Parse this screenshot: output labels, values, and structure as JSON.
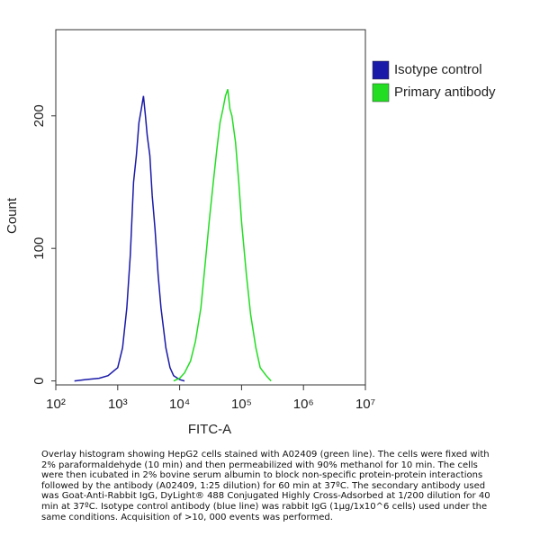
{
  "chart_data": {
    "type": "line",
    "xlabel": "FITC-A",
    "ylabel": "Count",
    "xscale": "log",
    "xlim": [
      100,
      10000000
    ],
    "ylim": [
      -3,
      265
    ],
    "xticks": [
      {
        "value": 100,
        "label": "10²"
      },
      {
        "value": 1000,
        "label": "10³"
      },
      {
        "value": 10000,
        "label": "10⁴"
      },
      {
        "value": 100000,
        "label": "10⁵"
      },
      {
        "value": 1000000,
        "label": "10⁶"
      },
      {
        "value": 10000000,
        "label": "10⁷"
      }
    ],
    "yticks": [
      0,
      100,
      200
    ],
    "legend": "upper right",
    "series": [
      {
        "name": "Isotype control",
        "color": "#1a1aa8",
        "x": [
          200,
          300,
          500,
          700,
          1000,
          1200,
          1400,
          1600,
          1800,
          2000,
          2200,
          2400,
          2600,
          2800,
          3000,
          3300,
          3600,
          4000,
          4500,
          5000,
          6000,
          7000,
          8000,
          10000,
          12000
        ],
        "values": [
          0,
          1,
          2,
          4,
          10,
          25,
          55,
          95,
          150,
          170,
          195,
          205,
          215,
          200,
          185,
          170,
          140,
          115,
          80,
          55,
          25,
          10,
          4,
          1,
          0
        ]
      },
      {
        "name": "Primary antibody",
        "color": "#22dd22",
        "x": [
          8000,
          10000,
          12000,
          15000,
          18000,
          22000,
          26000,
          30000,
          35000,
          40000,
          45000,
          50000,
          55000,
          60000,
          65000,
          70000,
          80000,
          90000,
          100000,
          120000,
          140000,
          170000,
          200000,
          250000,
          300000
        ],
        "values": [
          0,
          2,
          6,
          15,
          30,
          55,
          90,
          120,
          150,
          175,
          195,
          205,
          215,
          220,
          205,
          200,
          180,
          150,
          120,
          80,
          50,
          25,
          10,
          4,
          0
        ]
      }
    ]
  },
  "caption": "Overlay histogram showing HepG2 cells stained with A02409 (green line). The cells were fixed with 2% paraformaldehyde (10 min) and then permeabilized with 90% methanol for 10 min. The cells were then icubated in 2% bovine serum albumin to block non-specific protein-protein interactions followed by the antibody (A02409, 1:25 dilution) for 60 min at 37ºC. The secondary antibody used was Goat-Anti-Rabbit IgG, DyLight® 488 Conjugated Highly Cross-Adsorbed at 1/200 dilution for 40 min at 37ºC. Isotype control antibody (blue line) was rabbit IgG (1μg/1x10^6 cells) used under the same conditions. Acquisition of >10, 000 events was performed."
}
